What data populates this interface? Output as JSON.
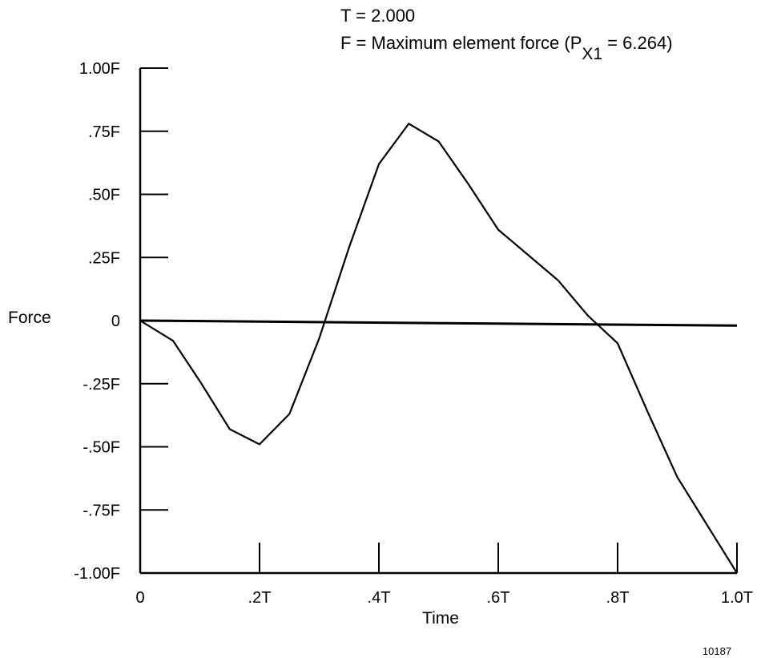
{
  "annotations": {
    "period": "T = 2.000",
    "force_def": "F = Maximum element force (P",
    "force_sub": "X1",
    "force_val": " = 6.264)"
  },
  "figure_number": "10187",
  "colors": {
    "ink": "#000000",
    "background": "#ffffff"
  },
  "chart_data": {
    "type": "line",
    "title": "",
    "xlabel": "Time",
    "ylabel": "Force",
    "xlim": [
      0,
      1.0
    ],
    "ylim": [
      -1.0,
      1.0
    ],
    "x_tick_values": [
      0,
      0.2,
      0.4,
      0.6,
      0.8,
      1.0
    ],
    "x_tick_labels": [
      "0",
      ".2T",
      ".4T",
      ".6T",
      ".8T",
      "1.0T"
    ],
    "y_tick_values": [
      1.0,
      0.75,
      0.5,
      0.25,
      0,
      -0.25,
      -0.5,
      -0.75,
      -1.0
    ],
    "y_tick_labels": [
      "1.00F",
      ".75F",
      ".50F",
      ".25F",
      "0",
      "-.25F",
      "-.50F",
      "-.75F",
      "-1.00F"
    ],
    "zero_line": {
      "y_start": 0.0,
      "y_end": -0.02
    },
    "series": [
      {
        "points": [
          [
            0,
            0.0
          ],
          [
            0.055,
            -0.08
          ],
          [
            0.1,
            -0.24
          ],
          [
            0.15,
            -0.43
          ],
          [
            0.2,
            -0.49
          ],
          [
            0.25,
            -0.37
          ],
          [
            0.3,
            -0.07
          ],
          [
            0.35,
            0.29
          ],
          [
            0.4,
            0.62
          ],
          [
            0.45,
            0.78
          ],
          [
            0.5,
            0.71
          ],
          [
            0.55,
            0.54
          ],
          [
            0.6,
            0.36
          ],
          [
            0.65,
            0.26
          ],
          [
            0.7,
            0.16
          ],
          [
            0.75,
            0.02
          ],
          [
            0.8,
            -0.09
          ],
          [
            0.85,
            -0.36
          ],
          [
            0.9,
            -0.62
          ],
          [
            1.0,
            -1.0
          ]
        ]
      }
    ]
  }
}
